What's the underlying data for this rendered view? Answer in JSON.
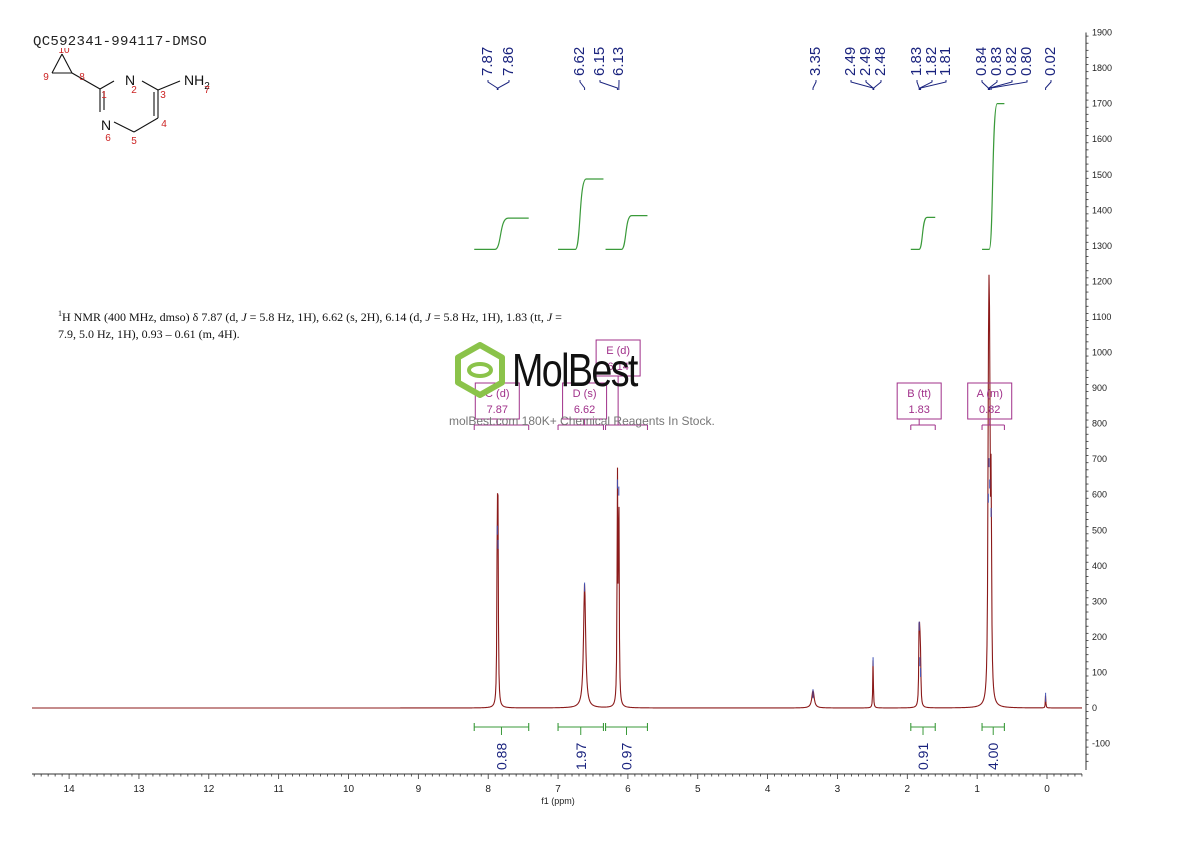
{
  "sample_id": "QC592341-994117-DMSO",
  "nmr_description": {
    "nucleus": "1",
    "parts": [
      "H NMR (400 MHz, dmso) δ 7.87 (d, ",
      "J",
      " = 5.8 Hz, 1H), 6.62 (s, 2H), 6.14 (d, ",
      "J",
      " = 5.8 Hz, 1H), 1.83 (tt, ",
      "J",
      " =",
      "7.9, 5.0 Hz, 1H), 0.93 – 0.61 (m, 4H)."
    ]
  },
  "watermark": {
    "brand": "MolBest",
    "tagline": "molBest.com  180K+ Chemical Reagents In Stock."
  },
  "structure": {
    "atom_labels": [
      "N",
      "N",
      "NH",
      "2"
    ],
    "atom_numbers": [
      "1",
      "2",
      "3",
      "4",
      "5",
      "6",
      "7",
      "8",
      "9",
      "10"
    ]
  },
  "chart_data": {
    "type": "line",
    "title": "",
    "xlabel": "f1 (ppm)",
    "ylabel": "",
    "x_axis": {
      "range": [
        14.5,
        -0.5
      ],
      "reversed": true,
      "ticks": [
        14,
        13,
        12,
        11,
        10,
        9,
        8,
        7,
        6,
        5,
        4,
        3,
        2,
        1,
        0
      ]
    },
    "y_axis": {
      "range": [
        -150,
        1900
      ],
      "position": "right",
      "ticks": [
        -100,
        0,
        100,
        200,
        300,
        400,
        500,
        600,
        700,
        800,
        900,
        1000,
        1100,
        1200,
        1300,
        1400,
        1500,
        1600,
        1700,
        1800,
        1900
      ]
    },
    "grid": false,
    "peaks": [
      {
        "shift": 7.87,
        "height": 510,
        "width": 0.006
      },
      {
        "shift": 7.86,
        "height": 470,
        "width": 0.006
      },
      {
        "shift": 6.62,
        "height": 350,
        "width": 0.018
      },
      {
        "shift": 6.15,
        "height": 640,
        "width": 0.006
      },
      {
        "shift": 6.13,
        "height": 620,
        "width": 0.006
      },
      {
        "shift": 3.35,
        "height": 50,
        "width": 0.02
      },
      {
        "shift": 2.49,
        "height": 140,
        "width": 0.005
      },
      {
        "shift": 1.83,
        "height": 240,
        "width": 0.006
      },
      {
        "shift": 1.82,
        "height": 140,
        "width": 0.006
      },
      {
        "shift": 1.81,
        "height": 110,
        "width": 0.006
      },
      {
        "shift": 0.84,
        "height": 600,
        "width": 0.008
      },
      {
        "shift": 0.83,
        "height": 700,
        "width": 0.008
      },
      {
        "shift": 0.82,
        "height": 640,
        "width": 0.008
      },
      {
        "shift": 0.8,
        "height": 560,
        "width": 0.008
      },
      {
        "shift": 0.02,
        "height": 40,
        "width": 0.004
      }
    ],
    "peak_labels": [
      "7.87",
      "7.86",
      "6.62",
      "6.15",
      "6.13",
      "3.35",
      "2.49",
      "2.49",
      "2.48",
      "1.83",
      "1.82",
      "1.81",
      "0.84",
      "0.83",
      "0.82",
      "0.80",
      "0.02"
    ],
    "peak_label_shifts": [
      7.87,
      7.86,
      6.62,
      6.15,
      6.13,
      3.35,
      2.49,
      2.49,
      2.48,
      1.83,
      1.82,
      1.81,
      0.84,
      0.83,
      0.82,
      0.8,
      0.02
    ],
    "multiplets": [
      {
        "letter": "C",
        "type": "d",
        "shift": "7.87",
        "center": 7.87,
        "range": [
          8.2,
          7.42
        ]
      },
      {
        "letter": "D",
        "type": "s",
        "shift": "6.62",
        "center": 6.62,
        "range": [
          7.0,
          6.35
        ]
      },
      {
        "letter": "E",
        "type": "d",
        "shift": "6.14",
        "center": 6.14,
        "range": [
          6.32,
          5.72
        ]
      },
      {
        "letter": "B",
        "type": "tt",
        "shift": "1.83",
        "center": 1.83,
        "range": [
          1.95,
          1.6
        ]
      },
      {
        "letter": "A",
        "type": "m",
        "shift": "0.82",
        "center": 0.82,
        "range": [
          0.93,
          0.61
        ]
      }
    ],
    "integrals": [
      {
        "value": "0.88",
        "range": [
          8.2,
          7.42
        ],
        "start": 1290,
        "end": 1378
      },
      {
        "value": "1.97",
        "range": [
          7.0,
          6.35
        ],
        "start": 1290,
        "end": 1488
      },
      {
        "value": "0.97",
        "range": [
          6.32,
          5.72
        ],
        "start": 1290,
        "end": 1385
      },
      {
        "value": "0.91",
        "range": [
          1.95,
          1.6
        ],
        "start": 1290,
        "end": 1380
      },
      {
        "value": "4.00",
        "range": [
          0.93,
          0.61
        ],
        "start": 1290,
        "end": 1700
      }
    ],
    "colors": {
      "spectrum": "#8b1a1a",
      "integral": "#3a9a3a",
      "labels": "#1a237e",
      "multiplet": "#a0308a"
    }
  }
}
